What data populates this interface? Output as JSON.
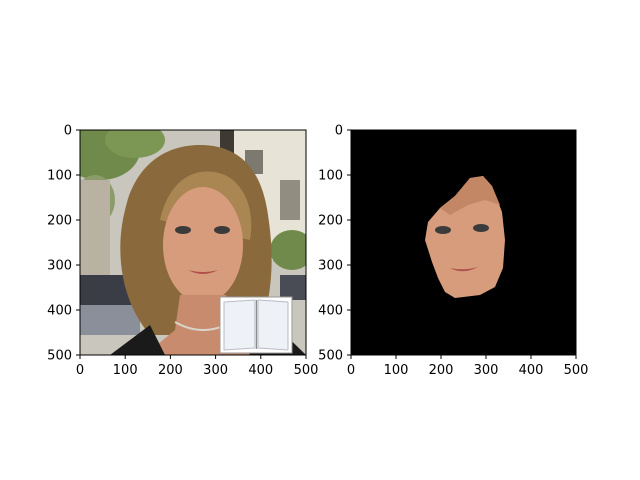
{
  "figure": {
    "panels": [
      {
        "id": "original",
        "image_description_icon": "portrait-photo",
        "xlim": [
          0,
          500
        ],
        "ylim": [
          500,
          0
        ],
        "xticks": [
          "0",
          "100",
          "200",
          "300",
          "400",
          "500"
        ],
        "yticks": [
          "0",
          "100",
          "200",
          "300",
          "400",
          "500"
        ]
      },
      {
        "id": "masked",
        "image_description_icon": "face-cutout-on-black",
        "xlim": [
          0,
          500
        ],
        "ylim": [
          500,
          0
        ],
        "xticks": [
          "0",
          "100",
          "200",
          "300",
          "400",
          "500"
        ],
        "yticks": [
          "0",
          "100",
          "200",
          "300",
          "400",
          "500"
        ]
      }
    ],
    "colors": {
      "background": "#ffffff",
      "mask_background": "#000000",
      "hair": "#8a6a3c",
      "skin": "#d79c7c",
      "foliage": "#6f8a4a"
    }
  }
}
